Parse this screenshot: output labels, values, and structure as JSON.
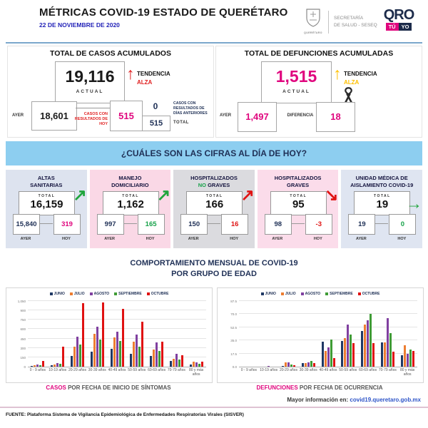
{
  "header": {
    "title": "MÉTRICAS COVID-19 ESTADO DE QUERÉTARO",
    "date": "22 DE NOVIEMBRE DE 2020",
    "escudo_caption": "QUERÉTARO",
    "secretaria_line1": "SECRETARÍA",
    "secretaria_line2": "DE SALUD - SESEQ",
    "qro_logo": "QRO",
    "qro_tu": "TÚ",
    "qro_yo": "YO"
  },
  "casos": {
    "title": "TOTAL DE CASOS ACUMULADOS",
    "actual": "19,116",
    "actual_label": "ACTUAL",
    "tendencia_label": "TENDENCIA",
    "tendencia_value": "ALZA",
    "ayer_label": "AYER",
    "ayer": "18,601",
    "hoy_label": "CASOS CON RESULTADOS DE HOY",
    "hoy": "515",
    "anteriores": "0",
    "anteriores_label": "CASOS CON RESULTADOS DE DÍAS ANTERIORES",
    "total": "515",
    "total_label": "TOTAL"
  },
  "defunciones": {
    "title": "TOTAL DE DEFUNCIONES ACUMULADAS",
    "actual": "1,515",
    "actual_label": "ACTUAL",
    "tendencia_label": "TENDENCIA",
    "tendencia_value": "ALZA",
    "ayer_label": "AYER",
    "ayer": "1,497",
    "diferencia_label": "DIFERENCIA",
    "diferencia": "18"
  },
  "banner": "¿CUÁLES SON LAS CIFRAS AL DÍA DE HOY?",
  "panel_labels": {
    "total": "TOTAL",
    "ayer": "AYER",
    "hoy": "HOY"
  },
  "panels": [
    {
      "title": [
        {
          "t": "ALTAS",
          "br": true
        },
        {
          "t": "SANITARIAS"
        }
      ],
      "total": "16,159",
      "ayer": "15,840",
      "hoy": "319",
      "hoy_color": "#E0067E",
      "bg": "#DDE3EF",
      "arrow": "up-right",
      "arrow_color": "#1FA53C"
    },
    {
      "title": [
        {
          "t": "MANEJO",
          "br": true
        },
        {
          "t": "DOMICILIARIO"
        }
      ],
      "total": "1,162",
      "ayer": "997",
      "hoy": "165",
      "hoy_color": "#17A24A",
      "bg": "#FAD8E6",
      "arrow": "up-right",
      "arrow_color": "#1FA53C"
    },
    {
      "title": [
        {
          "t": "HOSPITALIZADOS",
          "br": true
        },
        {
          "t": "NO",
          "c": "#17A24A"
        },
        {
          "t": " GRAVES"
        }
      ],
      "total": "166",
      "ayer": "150",
      "hoy": "16",
      "hoy_color": "#E01414",
      "bg": "#DBDBDF",
      "arrow": "up-right",
      "arrow_color": "#E01414"
    },
    {
      "title": [
        {
          "t": "HOSPITALIZADOS",
          "br": true
        },
        {
          "t": "GRAVES"
        }
      ],
      "total": "95",
      "ayer": "98",
      "hoy": "-3",
      "hoy_color": "#E01414",
      "bg": "#FBDCEA",
      "arrow": "down-right",
      "arrow_color": "#E01414"
    },
    {
      "title": [
        {
          "t": "UNIDAD MÉDICA DE",
          "br": true
        },
        {
          "t": "AISLAMIENTO COVID-19"
        }
      ],
      "total": "19",
      "ayer": "19",
      "hoy": "0",
      "hoy_color": "#17A24A",
      "bg": "#DFE5F1",
      "arrow": "right",
      "arrow_color": "#1FA53C"
    }
  ],
  "charts_section": {
    "title_line1": "COMPORTAMIENTO MENSUAL DE COVID-19",
    "title_line2": "POR GRUPO DE EDAD"
  },
  "captions": {
    "left_hl": "CASOS",
    "left_rest": " POR FECHA DE INICIO DE SÍNTOMAS",
    "right_hl": "DEFUNCIONES",
    "right_rest": " POR FECHA DE OCURRENCIA"
  },
  "chart_data": [
    {
      "type": "bar",
      "title": "CASOS POR FECHA DE INICIO DE SÍNTOMAS",
      "categories": [
        "0 - 9 años",
        "10-19 años",
        "20-29 años",
        "30-39 años",
        "40-49 años",
        "50-59 años",
        "60-69 años",
        "70-79 años",
        "80 y más años"
      ],
      "series": [
        {
          "name": "JUNIO",
          "color": "#1F3864",
          "values": [
            10,
            20,
            170,
            240,
            285,
            210,
            170,
            95,
            40
          ]
        },
        {
          "name": "JULIO",
          "color": "#ED7D31",
          "values": [
            25,
            35,
            325,
            530,
            465,
            405,
            275,
            125,
            75
          ]
        },
        {
          "name": "AGOSTO",
          "color": "#8040A0",
          "values": [
            30,
            60,
            475,
            645,
            565,
            510,
            385,
            200,
            65
          ]
        },
        {
          "name": "SEPTIEMBRE",
          "color": "#3F9C35",
          "values": [
            20,
            50,
            355,
            435,
            415,
            325,
            255,
            115,
            50
          ]
        },
        {
          "name": "OCTUBRE",
          "color": "#E01212",
          "values": [
            95,
            320,
            1015,
            1030,
            920,
            720,
            395,
            180,
            85
          ]
        }
      ],
      "ylim": [
        0,
        1050
      ],
      "yticks": [
        {
          "v": 0,
          "label": "0"
        },
        {
          "v": 150,
          "label": "150"
        },
        {
          "v": 300,
          "label": "300"
        },
        {
          "v": 450,
          "label": "450"
        },
        {
          "v": 600,
          "label": "600"
        },
        {
          "v": 750,
          "label": "750"
        },
        {
          "v": 900,
          "label": "900"
        },
        {
          "v": 1050,
          "label": "1,050"
        }
      ],
      "grid": true,
      "legend_position": "top"
    },
    {
      "type": "bar",
      "title": "DEFUNCIONES POR FECHA DE OCURRENCIA",
      "categories": [
        "0 - 9 años",
        "10-19 años",
        "20-29 años",
        "30-39 años",
        "40-49 años",
        "50-59 años",
        "60-69 años",
        "70-79 años",
        "80 y más años"
      ],
      "series": [
        {
          "name": "JUNIO",
          "color": "#1F3864",
          "values": [
            0,
            0,
            1,
            5,
            33,
            34,
            48,
            32,
            15
          ]
        },
        {
          "name": "JULIO",
          "color": "#ED7D31",
          "values": [
            0,
            0,
            6,
            5,
            21,
            38,
            56,
            32,
            29
          ]
        },
        {
          "name": "AGOSTO",
          "color": "#8040A0",
          "values": [
            0,
            1,
            6,
            6,
            26,
            56,
            62,
            65,
            17
          ]
        },
        {
          "name": "SEPTIEMBRE",
          "color": "#3F9C35",
          "values": [
            0,
            0,
            3,
            8,
            36,
            43,
            70,
            45,
            23
          ]
        },
        {
          "name": "OCTUBRE",
          "color": "#E01212",
          "values": [
            0,
            0,
            2,
            5,
            11,
            31,
            31,
            20,
            21
          ]
        }
      ],
      "ylim": [
        0,
        87.5
      ],
      "yticks": [
        {
          "v": 0,
          "label": "0.0"
        },
        {
          "v": 17.5,
          "label": "17.5"
        },
        {
          "v": 35,
          "label": "35.0"
        },
        {
          "v": 52.5,
          "label": "52.5"
        },
        {
          "v": 70,
          "label": "70.0"
        },
        {
          "v": 87.5,
          "label": "87.5"
        }
      ],
      "grid": true,
      "legend_position": "top"
    }
  ],
  "footer": {
    "more_info_label": "Mayor información en:",
    "more_info_link": "covid19.queretaro.gob.mx",
    "fuente": "FUENTE: Plataforma Sistema  de Vigilancia Epidemiológica de Enfermedades Respiratorias Virales (SISVER)"
  }
}
